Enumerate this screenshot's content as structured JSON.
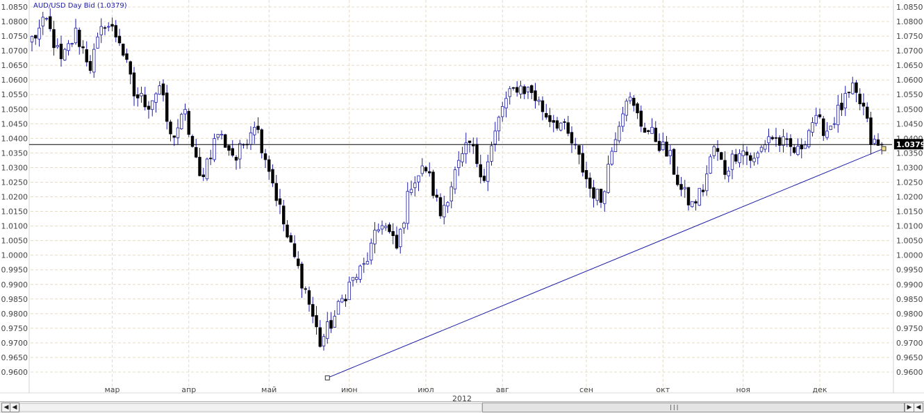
{
  "chart_data": {
    "type": "candlestick",
    "title": "AUD/USD Day Bid (1.0379)",
    "symbol": "AUD/USD",
    "period": "Day",
    "price_type": "Bid",
    "last_price": "1.0379",
    "year_label": "2012",
    "ylim": [
      0.958,
      1.086
    ],
    "y_tick_labels": [
      "1.0850",
      "1.0800",
      "1.0750",
      "1.0700",
      "1.0650",
      "1.0600",
      "1.0550",
      "1.0500",
      "1.0450",
      "1.0400",
      "1.0350",
      "1.0300",
      "1.0250",
      "1.0200",
      "1.0150",
      "1.0100",
      "1.0050",
      "1.0000",
      "0.9950",
      "0.9900",
      "0.9850",
      "0.9800",
      "0.9750",
      "0.9700",
      "0.9650",
      "0.9600"
    ],
    "x_tick_labels": [
      "мар",
      "апр",
      "май",
      "июн",
      "июл",
      "авг",
      "сен",
      "окт",
      "ноя",
      "дек"
    ],
    "x_tick_bar_index": [
      22,
      43,
      65,
      87,
      108,
      129,
      152,
      173,
      195,
      216
    ],
    "grid": true,
    "up_color": "#ffffff",
    "up_outline": "#1a1aa6",
    "down_color": "#000000",
    "wick_color": "#1a1aa6",
    "last_price_line_color": "#000000",
    "trendline": {
      "color": "#1a1aa6",
      "from": {
        "bar_index": 81,
        "price": 0.958
      },
      "to": {
        "bar_index": 232,
        "price": 1.0365
      }
    },
    "anchors": [
      [
        0,
        1.074
      ],
      [
        4,
        1.08
      ],
      [
        8,
        1.066
      ],
      [
        12,
        1.076
      ],
      [
        16,
        1.065
      ],
      [
        20,
        1.08
      ],
      [
        24,
        1.074
      ],
      [
        28,
        1.055
      ],
      [
        32,
        1.052
      ],
      [
        35,
        1.058
      ],
      [
        38,
        1.04
      ],
      [
        42,
        1.048
      ],
      [
        46,
        1.026
      ],
      [
        51,
        1.042
      ],
      [
        56,
        1.033
      ],
      [
        61,
        1.046
      ],
      [
        65,
        1.03
      ],
      [
        70,
        1.006
      ],
      [
        75,
        0.988
      ],
      [
        79,
        0.97
      ],
      [
        83,
        0.979
      ],
      [
        87,
        0.99
      ],
      [
        91,
        0.996
      ],
      [
        96,
        1.012
      ],
      [
        100,
        1.002
      ],
      [
        104,
        1.025
      ],
      [
        108,
        1.03
      ],
      [
        112,
        1.014
      ],
      [
        116,
        1.028
      ],
      [
        120,
        1.038
      ],
      [
        124,
        1.027
      ],
      [
        129,
        1.051
      ],
      [
        133,
        1.058
      ],
      [
        137,
        1.056
      ],
      [
        141,
        1.048
      ],
      [
        145,
        1.045
      ],
      [
        149,
        1.036
      ],
      [
        153,
        1.023
      ],
      [
        156,
        1.019
      ],
      [
        160,
        1.042
      ],
      [
        163,
        1.055
      ],
      [
        167,
        1.045
      ],
      [
        171,
        1.04
      ],
      [
        175,
        1.033
      ],
      [
        178,
        1.022
      ],
      [
        181,
        1.017
      ],
      [
        184,
        1.023
      ],
      [
        187,
        1.037
      ],
      [
        190,
        1.029
      ],
      [
        194,
        1.037
      ],
      [
        198,
        1.032
      ],
      [
        202,
        1.041
      ],
      [
        206,
        1.038
      ],
      [
        210,
        1.035
      ],
      [
        214,
        1.046
      ],
      [
        218,
        1.043
      ],
      [
        222,
        1.051
      ],
      [
        225,
        1.056
      ],
      [
        228,
        1.05
      ],
      [
        230,
        1.039
      ],
      [
        232,
        1.037
      ],
      [
        233,
        1.0379
      ]
    ]
  },
  "scrollbar": {
    "left_arrow": "◀",
    "right_arrow": "▶",
    "right_end_arrow": "◀",
    "grip": "|||"
  }
}
